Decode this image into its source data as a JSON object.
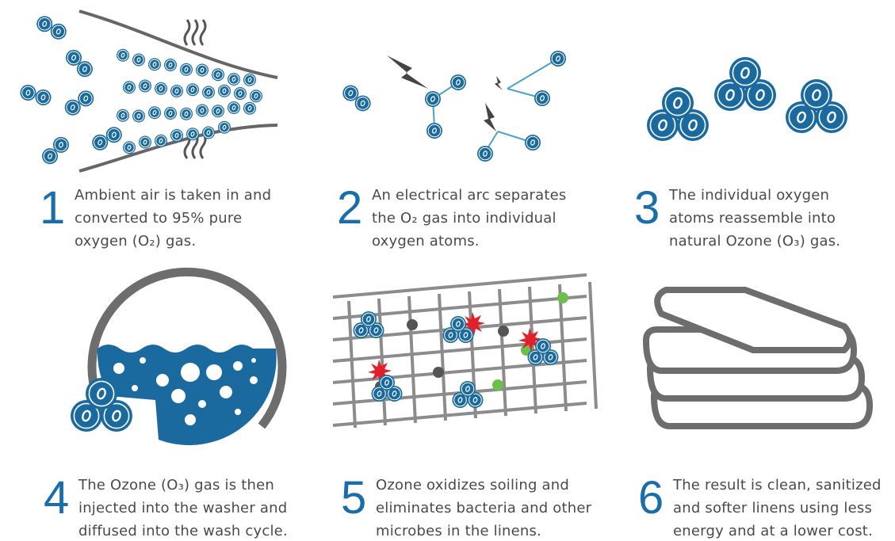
{
  "steps": [
    {
      "number": "1",
      "lines": [
        "Ambient air is taken in and",
        "converted to 95% pure",
        "oxygen (O₂) gas."
      ]
    },
    {
      "number": "2",
      "lines": [
        "An electrical arc separates",
        "the O₂ gas into individual",
        "oxygen atoms."
      ]
    },
    {
      "number": "3",
      "lines": [
        "The individual oxygen",
        "atoms reassemble into",
        "natural Ozone (O₃) gas."
      ]
    },
    {
      "number": "4",
      "lines": [
        "The Ozone (O₃) gas is then",
        "injected into the washer and",
        "diffused into the wash cycle."
      ]
    },
    {
      "number": "5",
      "lines": [
        "Ozone oxidizes soiling and",
        "eliminates bacteria and other",
        "microbes in the linens."
      ]
    },
    {
      "number": "6",
      "lines": [
        "The result is clean, sanitized",
        "and softer linens using less",
        "energy and at a lower cost."
      ]
    }
  ]
}
